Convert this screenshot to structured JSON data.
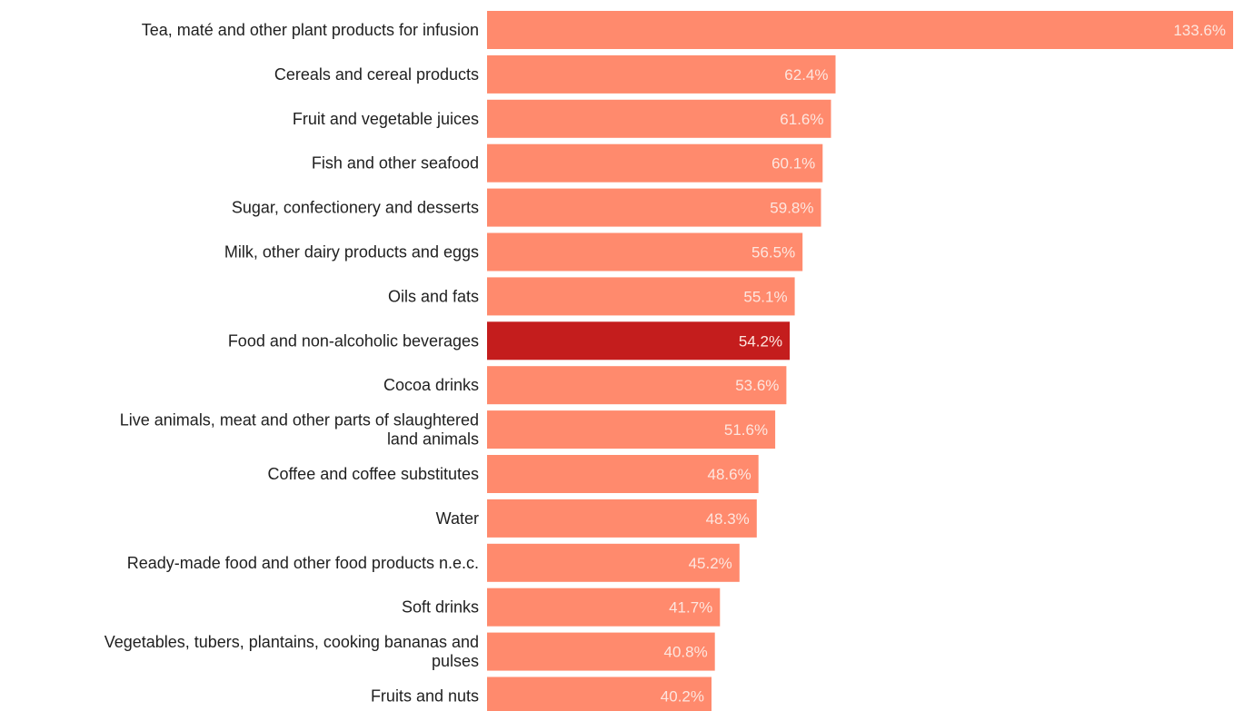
{
  "chart_data": {
    "type": "bar",
    "orientation": "horizontal",
    "title": "",
    "xlabel": "",
    "ylabel": "",
    "xlim": [
      0,
      133.6
    ],
    "grid": false,
    "legend": "none",
    "colors": {
      "default": "#ff8a6d",
      "highlight": "#c41d1d",
      "value_label": "#fde6df",
      "category_label": "#1f1f1f"
    },
    "highlight_index": 7,
    "categories": [
      [
        "Tea, maté and other plant products for infusion"
      ],
      [
        "Cereals and cereal products"
      ],
      [
        "Fruit and vegetable juices"
      ],
      [
        "Fish and other seafood"
      ],
      [
        "Sugar, confectionery and desserts"
      ],
      [
        "Milk, other dairy products and eggs"
      ],
      [
        "Oils and fats"
      ],
      [
        "Food and non-alcoholic beverages"
      ],
      [
        "Cocoa drinks"
      ],
      [
        "Live animals, meat and other parts of slaughtered",
        "land animals"
      ],
      [
        "Coffee and coffee substitutes"
      ],
      [
        "Water"
      ],
      [
        "Ready-made food and other food products n.e.c."
      ],
      [
        "Soft drinks"
      ],
      [
        "Vegetables, tubers, plantains, cooking bananas and",
        "pulses"
      ],
      [
        "Fruits and nuts"
      ]
    ],
    "values": [
      133.6,
      62.4,
      61.6,
      60.1,
      59.8,
      56.5,
      55.1,
      54.2,
      53.6,
      51.6,
      48.6,
      48.3,
      45.2,
      41.7,
      40.8,
      40.2
    ],
    "value_labels": [
      "133.6%",
      "62.4%",
      "61.6%",
      "60.1%",
      "59.8%",
      "56.5%",
      "55.1%",
      "54.2%",
      "53.6%",
      "51.6%",
      "48.6%",
      "48.3%",
      "45.2%",
      "41.7%",
      "40.8%",
      "40.2%"
    ]
  }
}
